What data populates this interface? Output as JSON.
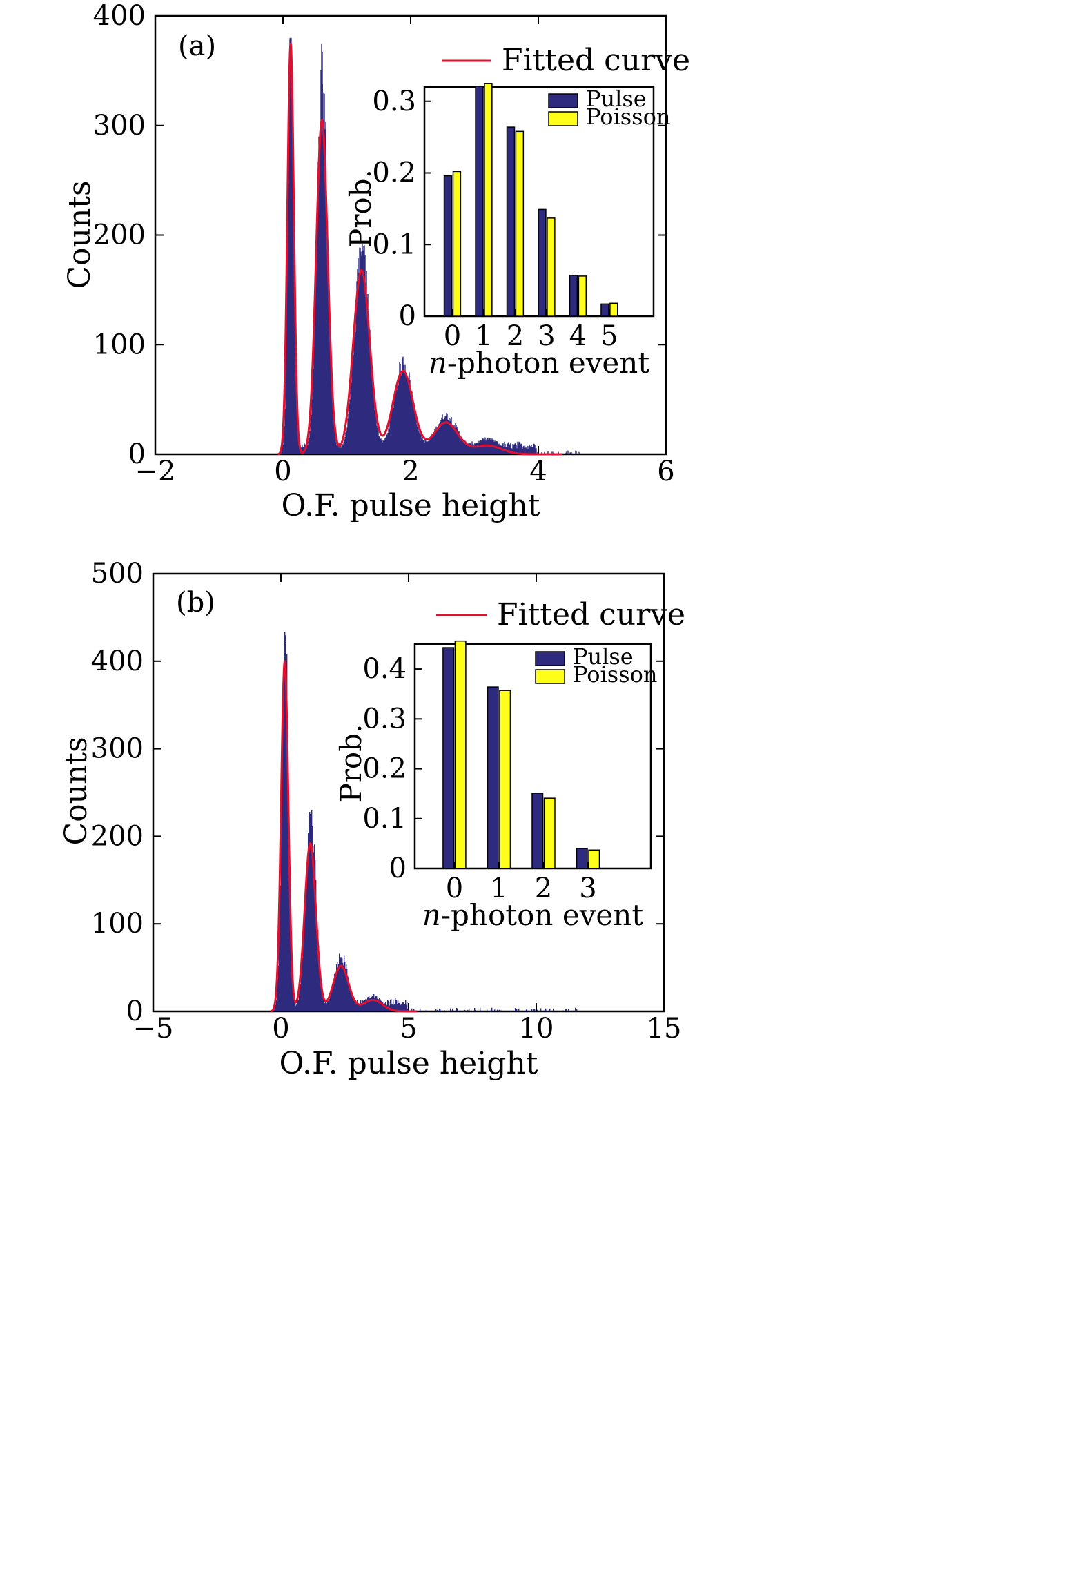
{
  "colors": {
    "histogram": "#2e2a7e",
    "fit": "#e01030",
    "pulse": "#2e2a7e",
    "poisson": "#ffff1a",
    "axis": "#000000"
  },
  "chart_data": [
    {
      "type": "histogram",
      "panel_label": "(a)",
      "xlabel": "O.F. pulse height",
      "ylabel": "Counts",
      "xlim": [
        -2,
        6
      ],
      "ylim": [
        0,
        400
      ],
      "xticks": [
        -2,
        0,
        2,
        4,
        6
      ],
      "xtick_labels": [
        "−2",
        "0",
        "2",
        "4",
        "6"
      ],
      "yticks": [
        0,
        100,
        200,
        300,
        400
      ],
      "ytick_labels": [
        "0",
        "100",
        "200",
        "300",
        "400"
      ],
      "legend": {
        "label": "Fitted curve",
        "placement": "top-right"
      },
      "peaks": [
        {
          "n": 0,
          "x": 0.12,
          "counts": 380,
          "fit": 375,
          "sigma": 0.05
        },
        {
          "n": 1,
          "x": 0.61,
          "counts": 338,
          "fit": 305,
          "sigma": 0.09
        },
        {
          "n": 2,
          "x": 1.23,
          "counts": 181,
          "fit": 168,
          "sigma": 0.13
        },
        {
          "n": 3,
          "x": 1.88,
          "counts": 82,
          "fit": 76,
          "sigma": 0.16
        },
        {
          "n": 4,
          "x": 2.55,
          "counts": 35,
          "fit": 29,
          "sigma": 0.19
        },
        {
          "n": 5,
          "x": 3.2,
          "counts": 14,
          "fit": 8,
          "sigma": 0.22
        }
      ],
      "inset": {
        "type": "bar",
        "xlabel": "n-photon event",
        "xlabel_italic": "n",
        "xlabel_rest": "-photon event",
        "ylabel": "Prob.",
        "categories": [
          "0",
          "1",
          "2",
          "3",
          "4",
          "5"
        ],
        "ylim": [
          0,
          0.32
        ],
        "yticks": [
          0,
          0.1,
          0.2,
          0.3
        ],
        "ytick_labels": [
          "0",
          "0.1",
          "0.2",
          "0.3"
        ],
        "series": [
          {
            "name": "Pulse",
            "values": [
              0.196,
              0.321,
              0.264,
              0.149,
              0.057,
              0.017
            ]
          },
          {
            "name": "Poisson",
            "values": [
              0.202,
              0.325,
              0.258,
              0.137,
              0.056,
              0.018
            ]
          }
        ]
      }
    },
    {
      "type": "histogram",
      "panel_label": "(b)",
      "xlabel": "O.F. pulse height",
      "ylabel": "Counts",
      "xlim": [
        -5,
        15
      ],
      "ylim": [
        0,
        500
      ],
      "xticks": [
        -5,
        0,
        5,
        10,
        15
      ],
      "xtick_labels": [
        "−5",
        "0",
        "5",
        "10",
        "15"
      ],
      "yticks": [
        0,
        100,
        200,
        300,
        400,
        500
      ],
      "ytick_labels": [
        "0",
        "100",
        "200",
        "300",
        "400",
        "500"
      ],
      "legend": {
        "label": "Fitted curve",
        "placement": "top-right"
      },
      "peaks": [
        {
          "n": 0,
          "x": 0.15,
          "counts": 422,
          "fit": 400,
          "sigma": 0.14
        },
        {
          "n": 1,
          "x": 1.15,
          "counts": 224,
          "fit": 192,
          "sigma": 0.22
        },
        {
          "n": 2,
          "x": 2.35,
          "counts": 62,
          "fit": 52,
          "sigma": 0.3
        },
        {
          "n": 3,
          "x": 3.6,
          "counts": 18,
          "fit": 13,
          "sigma": 0.38
        }
      ],
      "inset": {
        "type": "bar",
        "xlabel": "n-photon event",
        "xlabel_italic": "n",
        "xlabel_rest": "-photon event",
        "ylabel": "Prob.",
        "categories": [
          "0",
          "1",
          "2",
          "3"
        ],
        "ylim": [
          0,
          0.45
        ],
        "yticks": [
          0,
          0.1,
          0.2,
          0.3,
          0.4
        ],
        "ytick_labels": [
          "0",
          "0.1",
          "0.2",
          "0.3",
          "0.4"
        ],
        "series": [
          {
            "name": "Pulse",
            "values": [
              0.443,
              0.364,
              0.151,
              0.04
            ]
          },
          {
            "name": "Poisson",
            "values": [
              0.456,
              0.357,
              0.141,
              0.037
            ]
          }
        ]
      }
    }
  ]
}
